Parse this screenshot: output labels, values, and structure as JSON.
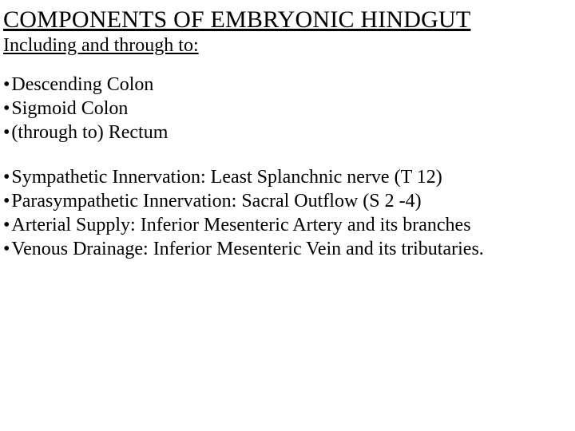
{
  "title": "COMPONENTS OF EMBRYONIC HINDGUT",
  "subtitle": "Including and through to:",
  "group1": {
    "item1": "Descending Colon",
    "item2": "Sigmoid Colon",
    "item3": "(through to) Rectum"
  },
  "group2": {
    "item1": "Sympathetic Innervation: Least Splanchnic nerve (T 12)",
    "item2": "Parasympathetic Innervation: Sacral Outflow (S 2 -4)",
    "item3": "Arterial Supply:  Inferior Mesenteric Artery and its branches",
    "item4": "Venous Drainage: Inferior Mesenteric Vein and its tributaries."
  },
  "bullet_char": "•",
  "colors": {
    "background": "#ffffff",
    "text": "#000000"
  },
  "typography": {
    "font_family": "Times New Roman",
    "title_fontsize": 30,
    "subtitle_fontsize": 24,
    "body_fontsize": 24
  }
}
